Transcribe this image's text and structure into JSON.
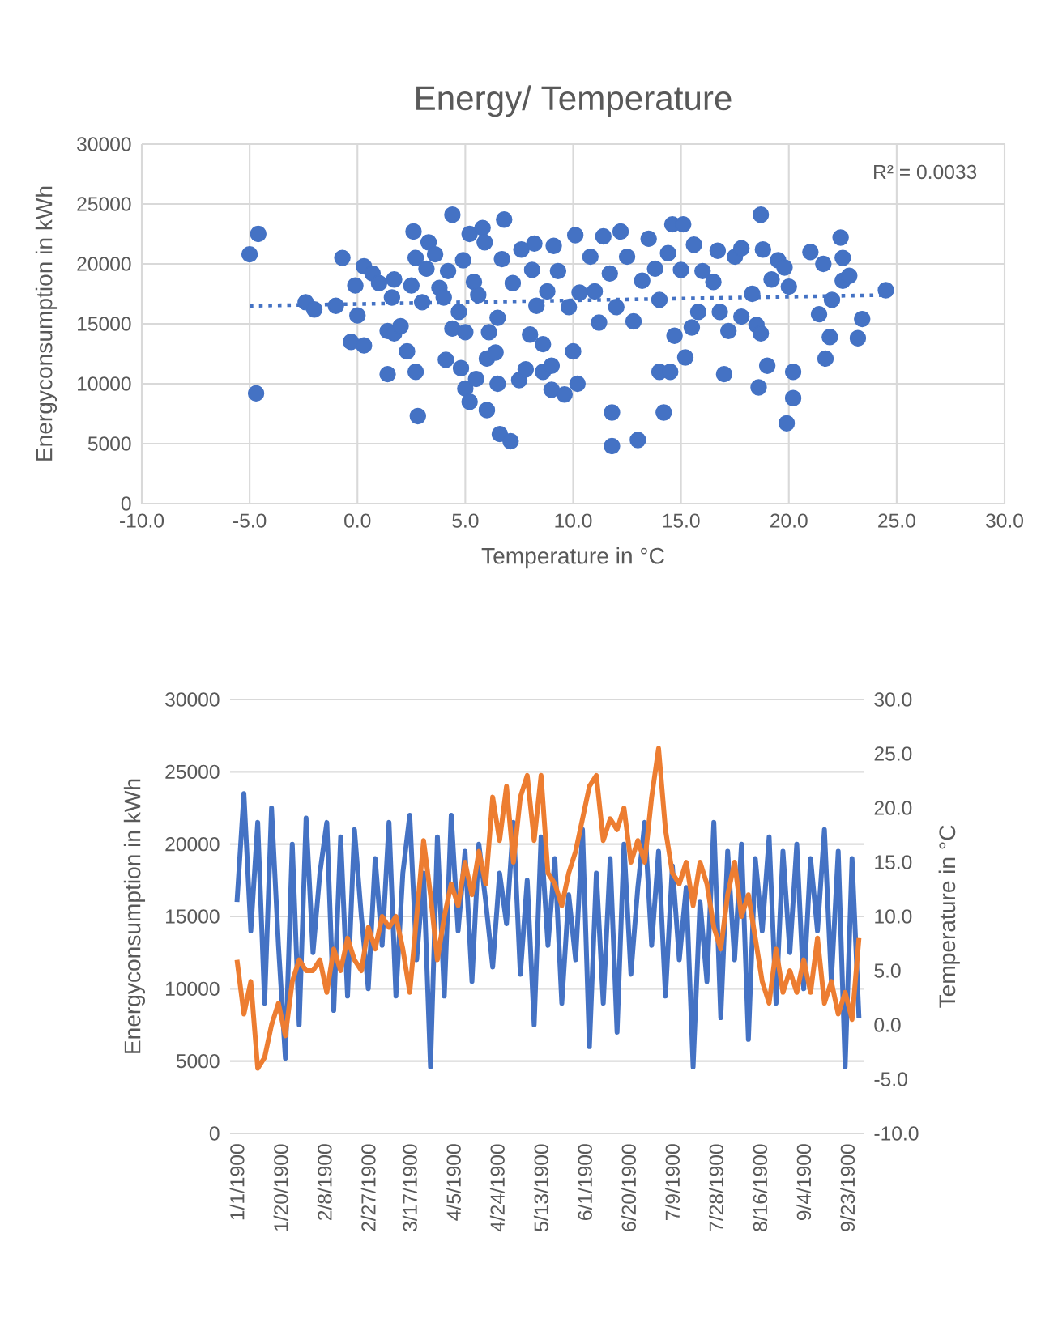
{
  "chart_data": [
    {
      "type": "scatter",
      "title": "Energy/ Temperature",
      "xlabel": "Temperature in °C",
      "ylabel": "Energyconsumption in kWh",
      "annotations": [
        "R² = 0.0033"
      ],
      "xlim": [
        -10,
        30
      ],
      "ylim": [
        0,
        30000
      ],
      "xticks": [
        {
          "value": -10,
          "label": "-10.0"
        },
        {
          "value": -5,
          "label": "-5.0"
        },
        {
          "value": 0,
          "label": "0.0"
        },
        {
          "value": 5,
          "label": "5.0"
        },
        {
          "value": 10,
          "label": "10.0"
        },
        {
          "value": 15,
          "label": "15.0"
        },
        {
          "value": 20,
          "label": "20.0"
        },
        {
          "value": 25,
          "label": "25.0"
        },
        {
          "value": 30,
          "label": "30.0"
        }
      ],
      "yticks": [
        0,
        5000,
        10000,
        15000,
        20000,
        25000,
        30000
      ],
      "grid": true,
      "marker": "circle",
      "series": [
        {
          "color": "#4472c4",
          "x": [
            -5.0,
            -4.6,
            -4.7,
            -2.4,
            -2.0,
            -1.0,
            -0.7,
            -0.1,
            0.0,
            -0.3,
            0.3,
            0.3,
            0.7,
            1.0,
            1.4,
            1.7,
            1.4,
            1.6,
            1.7,
            2.0,
            2.3,
            2.5,
            2.6,
            2.7,
            2.8,
            2.7,
            3.0,
            3.2,
            3.3,
            3.6,
            3.8,
            4.0,
            4.1,
            4.2,
            4.4,
            4.4,
            4.7,
            4.8,
            4.9,
            5.0,
            5.2,
            5.0,
            5.2,
            5.4,
            5.5,
            5.6,
            5.8,
            5.9,
            6.0,
            6.1,
            6.0,
            6.4,
            6.5,
            6.5,
            6.6,
            6.8,
            6.7,
            7.1,
            7.2,
            7.5,
            7.6,
            7.8,
            8.0,
            8.1,
            8.2,
            8.3,
            8.6,
            8.6,
            8.8,
            9.0,
            9.0,
            9.1,
            9.3,
            9.6,
            9.8,
            10.0,
            10.1,
            10.2,
            10.3,
            10.8,
            11.0,
            11.2,
            11.4,
            11.7,
            11.8,
            11.8,
            12.0,
            12.2,
            12.5,
            12.8,
            13.0,
            13.2,
            13.5,
            13.8,
            14.0,
            14.2,
            14.0,
            14.4,
            14.5,
            14.6,
            14.7,
            15.0,
            15.1,
            15.2,
            15.5,
            15.6,
            15.8,
            16.0,
            16.5,
            16.7,
            16.8,
            17.0,
            17.2,
            17.5,
            17.8,
            17.8,
            18.3,
            18.5,
            18.7,
            18.8,
            18.6,
            18.7,
            19.0,
            19.2,
            19.5,
            19.8,
            19.9,
            20.0,
            20.2,
            20.2,
            21.0,
            21.6,
            21.4,
            21.7,
            21.9,
            22.0,
            22.4,
            22.5,
            22.5,
            22.8,
            23.2,
            23.4,
            24.5
          ],
          "values": [
            20800,
            22500,
            9200,
            16800,
            16200,
            16500,
            20500,
            18200,
            15700,
            13500,
            13200,
            19800,
            19200,
            18400,
            14400,
            14200,
            10800,
            17200,
            18700,
            14800,
            12700,
            18200,
            22700,
            11000,
            7300,
            20500,
            16800,
            19600,
            21800,
            20800,
            18000,
            17200,
            12000,
            19400,
            24100,
            14600,
            16000,
            11300,
            20300,
            9600,
            8500,
            14300,
            22500,
            18500,
            10400,
            17400,
            23000,
            21800,
            7800,
            14300,
            12100,
            12600,
            10000,
            15500,
            5800,
            23700,
            20400,
            5200,
            18400,
            10300,
            21200,
            11200,
            14100,
            19500,
            21700,
            16500,
            13300,
            11000,
            17700,
            9500,
            11500,
            21500,
            19400,
            9100,
            16400,
            12700,
            22400,
            10000,
            17600,
            20600,
            17700,
            15100,
            22300,
            19200,
            7600,
            4800,
            16400,
            22700,
            20600,
            15200,
            5300,
            18600,
            22100,
            19600,
            11000,
            7600,
            17000,
            20900,
            11000,
            23300,
            14000,
            19500,
            23300,
            12200,
            14700,
            21600,
            16000,
            19400,
            18500,
            21100,
            16000,
            10800,
            14400,
            20600,
            21300,
            15600,
            17500,
            14900,
            24100,
            21200,
            9700,
            14200,
            11500,
            18700,
            20300,
            19700,
            6700,
            18100,
            11000,
            8800,
            21000,
            20000,
            15800,
            12100,
            13900,
            17000,
            22200,
            18600,
            20500,
            19000,
            13800,
            15400,
            17800
          ]
        },
        {
          "type": "line",
          "color": "#4472c4",
          "marker": "none",
          "line_style": "dotted",
          "x": [
            -5.0,
            24.5
          ],
          "values": [
            16500,
            17400
          ]
        }
      ]
    },
    {
      "type": "line",
      "ylabel": "Energyconsumption in kWh",
      "y2label": "Temperature in °C",
      "x": [
        "1900-01-01",
        "1900-01-04",
        "1900-01-07",
        "1900-01-10",
        "1900-01-13",
        "1900-01-16",
        "1900-01-19",
        "1900-01-22",
        "1900-01-25",
        "1900-01-28",
        "1900-01-31",
        "1900-02-03",
        "1900-02-06",
        "1900-02-09",
        "1900-02-12",
        "1900-02-15",
        "1900-02-18",
        "1900-02-21",
        "1900-02-24",
        "1900-02-27",
        "1900-03-02",
        "1900-03-05",
        "1900-03-08",
        "1900-03-11",
        "1900-03-14",
        "1900-03-17",
        "1900-03-20",
        "1900-03-23",
        "1900-03-26",
        "1900-03-29",
        "1900-04-01",
        "1900-04-04",
        "1900-04-07",
        "1900-04-10",
        "1900-04-13",
        "1900-04-16",
        "1900-04-19",
        "1900-04-22",
        "1900-04-25",
        "1900-04-28",
        "1900-05-01",
        "1900-05-04",
        "1900-05-07",
        "1900-05-10",
        "1900-05-13",
        "1900-05-16",
        "1900-05-19",
        "1900-05-22",
        "1900-05-25",
        "1900-05-28",
        "1900-05-31",
        "1900-06-03",
        "1900-06-06",
        "1900-06-09",
        "1900-06-12",
        "1900-06-15",
        "1900-06-18",
        "1900-06-21",
        "1900-06-24",
        "1900-06-27",
        "1900-06-30",
        "1900-07-03",
        "1900-07-06",
        "1900-07-09",
        "1900-07-12",
        "1900-07-15",
        "1900-07-18",
        "1900-07-21",
        "1900-07-24",
        "1900-07-27",
        "1900-07-30",
        "1900-08-02",
        "1900-08-05",
        "1900-08-08",
        "1900-08-11",
        "1900-08-14",
        "1900-08-17",
        "1900-08-20",
        "1900-08-23",
        "1900-08-26",
        "1900-08-29",
        "1900-09-01",
        "1900-09-04",
        "1900-09-07",
        "1900-09-10",
        "1900-09-13",
        "1900-09-16",
        "1900-09-19",
        "1900-09-22",
        "1900-09-25",
        "1900-09-28"
      ],
      "xlim": [
        "1899-12-29",
        "1900-09-30"
      ],
      "ylim": [
        0,
        30000
      ],
      "yticks": [
        0,
        5000,
        10000,
        15000,
        20000,
        25000,
        30000
      ],
      "y2lim": [
        -10,
        30
      ],
      "y2ticks": [
        {
          "value": -10,
          "label": "-10.0"
        },
        {
          "value": -5,
          "label": "-5.0"
        },
        {
          "value": 0,
          "label": "0.0"
        },
        {
          "value": 5,
          "label": "5.0"
        },
        {
          "value": 10,
          "label": "10.0"
        },
        {
          "value": 15,
          "label": "15.0"
        },
        {
          "value": 20,
          "label": "20.0"
        },
        {
          "value": 25,
          "label": "25.0"
        },
        {
          "value": 30,
          "label": "30.0"
        }
      ],
      "xticks": [
        {
          "value": "1900-01-01",
          "label": "1/1/1900"
        },
        {
          "value": "1900-01-20",
          "label": "1/20/1900"
        },
        {
          "value": "1900-02-08",
          "label": "2/8/1900"
        },
        {
          "value": "1900-02-27",
          "label": "2/27/1900"
        },
        {
          "value": "1900-03-17",
          "label": "3/17/1900"
        },
        {
          "value": "1900-04-05",
          "label": "4/5/1900"
        },
        {
          "value": "1900-04-24",
          "label": "4/24/1900"
        },
        {
          "value": "1900-05-13",
          "label": "5/13/1900"
        },
        {
          "value": "1900-06-01",
          "label": "6/1/1900"
        },
        {
          "value": "1900-06-20",
          "label": "6/20/1900"
        },
        {
          "value": "1900-07-09",
          "label": "7/9/1900"
        },
        {
          "value": "1900-07-28",
          "label": "7/28/1900"
        },
        {
          "value": "1900-08-16",
          "label": "8/16/1900"
        },
        {
          "value": "1900-09-04",
          "label": "9/4/1900"
        },
        {
          "value": "1900-09-23",
          "label": "9/23/1900"
        }
      ],
      "grid": "y",
      "series": [
        {
          "color": "#4472c4",
          "values": [
            16000,
            23500,
            14000,
            21500,
            9000,
            22500,
            13000,
            5200,
            20000,
            7500,
            21800,
            12500,
            18000,
            21500,
            8500,
            20500,
            9500,
            21000,
            15000,
            10000,
            19000,
            13000,
            21500,
            9500,
            18000,
            22000,
            12000,
            18000,
            4600,
            20500,
            9500,
            22000,
            14000,
            19500,
            10500,
            20000,
            16000,
            11500,
            18000,
            14500,
            21500,
            11000,
            17500,
            7500,
            20500,
            13000,
            19000,
            9000,
            16500,
            12000,
            21000,
            6000,
            18000,
            9000,
            19000,
            7000,
            20000,
            11000,
            17000,
            21500,
            13000,
            19500,
            9500,
            18500,
            12000,
            17000,
            4600,
            16000,
            10500,
            21500,
            8000,
            19500,
            12000,
            20000,
            6500,
            19000,
            14000,
            20500,
            9000,
            19500,
            12500,
            20000,
            10000,
            19000,
            14000,
            21000,
            10500,
            19500,
            4600,
            19000,
            8000
          ]
        },
        {
          "color": "#ed7d31",
          "axis": "y2",
          "values": [
            6,
            1,
            4,
            -4,
            -3,
            0,
            2,
            -1,
            4,
            6,
            5,
            5,
            6,
            3,
            7,
            5,
            8,
            6,
            5,
            9,
            7,
            10,
            9,
            10,
            7,
            3,
            10,
            17,
            12,
            6,
            10,
            13,
            11,
            15,
            12,
            16,
            13,
            21,
            17,
            22,
            15,
            21,
            23,
            17,
            23,
            14,
            13,
            11,
            14,
            16,
            19,
            22,
            23,
            17,
            19,
            18,
            20,
            15,
            17,
            15,
            21,
            25.5,
            18,
            14,
            13,
            15,
            11,
            15,
            13,
            9,
            7,
            12,
            15,
            10,
            12,
            8,
            4,
            2,
            7,
            3,
            5,
            3,
            6,
            3,
            8,
            2,
            4,
            1,
            3,
            0.5,
            8
          ]
        }
      ]
    }
  ]
}
